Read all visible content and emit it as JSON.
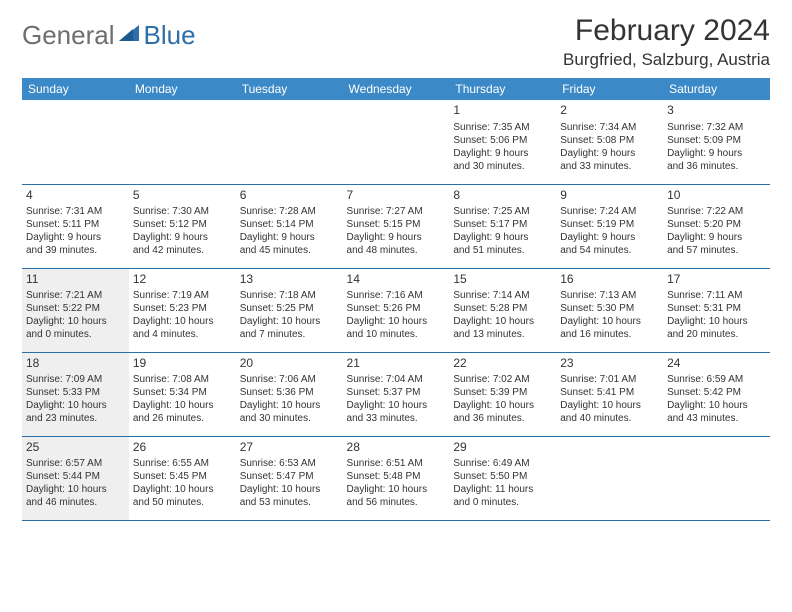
{
  "logo": {
    "general": "General",
    "blue": "Blue"
  },
  "title": "February 2024",
  "location": "Burgfried, Salzburg, Austria",
  "colors": {
    "header_bg": "#3b89c7",
    "header_text": "#ffffff",
    "border": "#2f6fa8",
    "shade": "#efefef",
    "logo_gray": "#6d6e71",
    "logo_blue": "#2f6fa8"
  },
  "day_headers": [
    "Sunday",
    "Monday",
    "Tuesday",
    "Wednesday",
    "Thursday",
    "Friday",
    "Saturday"
  ],
  "weeks": [
    [
      {
        "empty": true
      },
      {
        "empty": true
      },
      {
        "empty": true
      },
      {
        "empty": true
      },
      {
        "num": "1",
        "sunrise": "7:35 AM",
        "sunset": "5:06 PM",
        "daylight_h": "9",
        "daylight_m": "30"
      },
      {
        "num": "2",
        "sunrise": "7:34 AM",
        "sunset": "5:08 PM",
        "daylight_h": "9",
        "daylight_m": "33"
      },
      {
        "num": "3",
        "sunrise": "7:32 AM",
        "sunset": "5:09 PM",
        "daylight_h": "9",
        "daylight_m": "36"
      }
    ],
    [
      {
        "num": "4",
        "sunrise": "7:31 AM",
        "sunset": "5:11 PM",
        "daylight_h": "9",
        "daylight_m": "39"
      },
      {
        "num": "5",
        "sunrise": "7:30 AM",
        "sunset": "5:12 PM",
        "daylight_h": "9",
        "daylight_m": "42"
      },
      {
        "num": "6",
        "sunrise": "7:28 AM",
        "sunset": "5:14 PM",
        "daylight_h": "9",
        "daylight_m": "45"
      },
      {
        "num": "7",
        "sunrise": "7:27 AM",
        "sunset": "5:15 PM",
        "daylight_h": "9",
        "daylight_m": "48"
      },
      {
        "num": "8",
        "sunrise": "7:25 AM",
        "sunset": "5:17 PM",
        "daylight_h": "9",
        "daylight_m": "51"
      },
      {
        "num": "9",
        "sunrise": "7:24 AM",
        "sunset": "5:19 PM",
        "daylight_h": "9",
        "daylight_m": "54"
      },
      {
        "num": "10",
        "sunrise": "7:22 AM",
        "sunset": "5:20 PM",
        "daylight_h": "9",
        "daylight_m": "57"
      }
    ],
    [
      {
        "num": "11",
        "shaded": true,
        "sunrise": "7:21 AM",
        "sunset": "5:22 PM",
        "daylight_h": "10",
        "daylight_m": "0"
      },
      {
        "num": "12",
        "sunrise": "7:19 AM",
        "sunset": "5:23 PM",
        "daylight_h": "10",
        "daylight_m": "4"
      },
      {
        "num": "13",
        "sunrise": "7:18 AM",
        "sunset": "5:25 PM",
        "daylight_h": "10",
        "daylight_m": "7"
      },
      {
        "num": "14",
        "sunrise": "7:16 AM",
        "sunset": "5:26 PM",
        "daylight_h": "10",
        "daylight_m": "10"
      },
      {
        "num": "15",
        "sunrise": "7:14 AM",
        "sunset": "5:28 PM",
        "daylight_h": "10",
        "daylight_m": "13"
      },
      {
        "num": "16",
        "sunrise": "7:13 AM",
        "sunset": "5:30 PM",
        "daylight_h": "10",
        "daylight_m": "16"
      },
      {
        "num": "17",
        "sunrise": "7:11 AM",
        "sunset": "5:31 PM",
        "daylight_h": "10",
        "daylight_m": "20"
      }
    ],
    [
      {
        "num": "18",
        "shaded": true,
        "sunrise": "7:09 AM",
        "sunset": "5:33 PM",
        "daylight_h": "10",
        "daylight_m": "23"
      },
      {
        "num": "19",
        "sunrise": "7:08 AM",
        "sunset": "5:34 PM",
        "daylight_h": "10",
        "daylight_m": "26"
      },
      {
        "num": "20",
        "sunrise": "7:06 AM",
        "sunset": "5:36 PM",
        "daylight_h": "10",
        "daylight_m": "30"
      },
      {
        "num": "21",
        "sunrise": "7:04 AM",
        "sunset": "5:37 PM",
        "daylight_h": "10",
        "daylight_m": "33"
      },
      {
        "num": "22",
        "sunrise": "7:02 AM",
        "sunset": "5:39 PM",
        "daylight_h": "10",
        "daylight_m": "36"
      },
      {
        "num": "23",
        "sunrise": "7:01 AM",
        "sunset": "5:41 PM",
        "daylight_h": "10",
        "daylight_m": "40"
      },
      {
        "num": "24",
        "sunrise": "6:59 AM",
        "sunset": "5:42 PM",
        "daylight_h": "10",
        "daylight_m": "43"
      }
    ],
    [
      {
        "num": "25",
        "shaded": true,
        "sunrise": "6:57 AM",
        "sunset": "5:44 PM",
        "daylight_h": "10",
        "daylight_m": "46"
      },
      {
        "num": "26",
        "sunrise": "6:55 AM",
        "sunset": "5:45 PM",
        "daylight_h": "10",
        "daylight_m": "50"
      },
      {
        "num": "27",
        "sunrise": "6:53 AM",
        "sunset": "5:47 PM",
        "daylight_h": "10",
        "daylight_m": "53"
      },
      {
        "num": "28",
        "sunrise": "6:51 AM",
        "sunset": "5:48 PM",
        "daylight_h": "10",
        "daylight_m": "56"
      },
      {
        "num": "29",
        "sunrise": "6:49 AM",
        "sunset": "5:50 PM",
        "daylight_h": "11",
        "daylight_m": "0"
      },
      {
        "empty": true
      },
      {
        "empty": true
      }
    ]
  ]
}
